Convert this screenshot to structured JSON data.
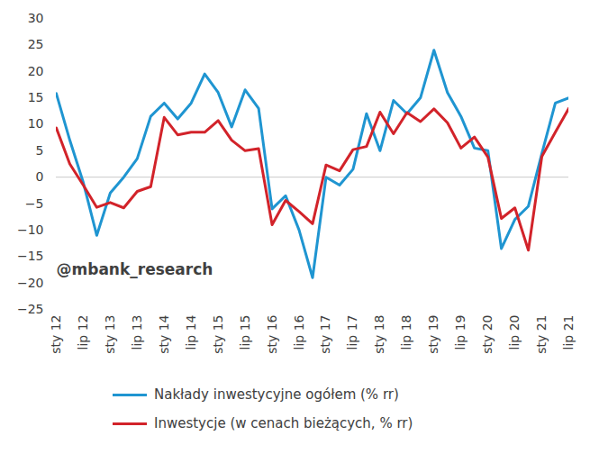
{
  "chart_data": {
    "type": "line",
    "categories": [
      "sty 12",
      null,
      "lip 12",
      null,
      "sty 13",
      null,
      "lip 13",
      null,
      "sty 14",
      null,
      "lip 14",
      null,
      "sty 15",
      null,
      "lip 15",
      null,
      "sty 16",
      null,
      "lip 16",
      null,
      "sty 17",
      null,
      "lip 17",
      null,
      "sty 18",
      null,
      "lip 18",
      null,
      "sty 19",
      null,
      "lip 19",
      null,
      "sty 20",
      null,
      "lip 20",
      null,
      "sty 21",
      null,
      "lip 21"
    ],
    "series": [
      {
        "name": "Nakłady inwestycyjne ogółem (% rr)",
        "color": "#1f95d1",
        "values": [
          15.8,
          7,
          -1,
          -11,
          -3,
          0,
          3.5,
          11.5,
          14,
          11,
          14,
          19.5,
          16,
          9.5,
          16.5,
          13,
          -6,
          -3.5,
          -10,
          -19,
          0,
          -1.5,
          1.5,
          12,
          5,
          14.5,
          12,
          15,
          24,
          16,
          11.5,
          5.5,
          5,
          -13.5,
          -8,
          -5.5,
          4.5,
          14,
          15
        ]
      },
      {
        "name": "Inwestycje (w cenach bieżących, % rr)",
        "color": "#d2232a",
        "values": [
          9.3,
          2.5,
          -1.5,
          -5.7,
          -4.8,
          -5.8,
          -2.7,
          -1.8,
          11.3,
          8,
          8.5,
          8.5,
          10.7,
          7,
          5,
          5.4,
          -9,
          -4.4,
          -6.5,
          -8.8,
          2.3,
          1.2,
          5.2,
          5.8,
          12.3,
          8.2,
          12.2,
          10.5,
          12.9,
          10.3,
          5.5,
          7.6,
          3.8,
          -7.8,
          -5.8,
          -13.8,
          3.9,
          8.5,
          13
        ]
      }
    ],
    "ylim": [
      -25,
      30
    ],
    "yticks": [
      -25,
      -20,
      -15,
      -10,
      -5,
      0,
      5,
      10,
      15,
      20,
      25,
      30
    ],
    "annotations": [
      {
        "text": "@mbank_research",
        "x": 0,
        "y": -17.5
      }
    ],
    "legend": "bottom",
    "grid": false
  }
}
